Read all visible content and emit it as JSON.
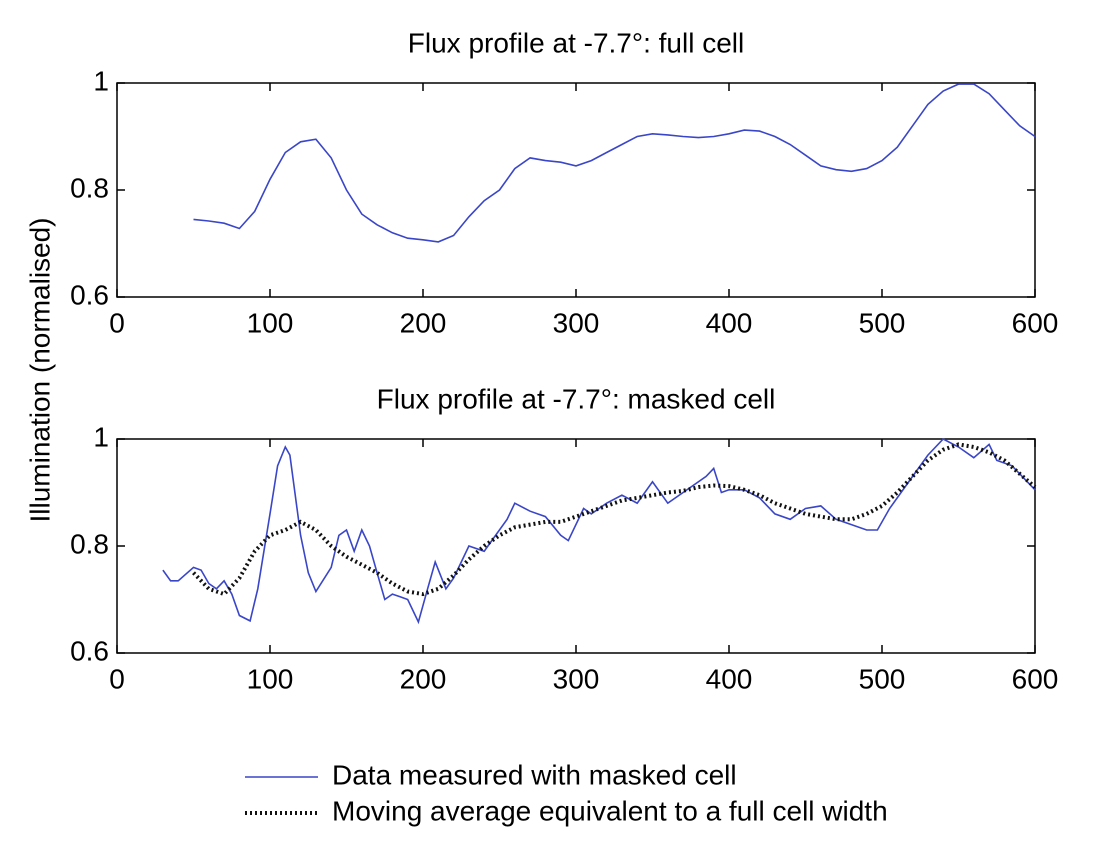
{
  "chart_data": [
    {
      "type": "line",
      "title": "Flux profile at -7.7°: full cell",
      "ylabel": "Illumination (normalised)",
      "color": "#3a46c8",
      "x": [
        50,
        60,
        70,
        80,
        90,
        100,
        110,
        120,
        130,
        140,
        150,
        160,
        170,
        180,
        190,
        200,
        210,
        220,
        230,
        240,
        250,
        260,
        270,
        280,
        290,
        300,
        310,
        320,
        330,
        340,
        350,
        360,
        370,
        380,
        390,
        400,
        410,
        420,
        430,
        440,
        450,
        460,
        470,
        480,
        490,
        500,
        510,
        520,
        530,
        540,
        550,
        560,
        570,
        580,
        590,
        600
      ],
      "values": [
        0.745,
        0.742,
        0.738,
        0.728,
        0.76,
        0.82,
        0.87,
        0.89,
        0.895,
        0.86,
        0.8,
        0.755,
        0.735,
        0.72,
        0.71,
        0.707,
        0.703,
        0.715,
        0.75,
        0.78,
        0.8,
        0.84,
        0.86,
        0.855,
        0.852,
        0.845,
        0.855,
        0.87,
        0.885,
        0.9,
        0.905,
        0.903,
        0.9,
        0.898,
        0.9,
        0.905,
        0.912,
        0.91,
        0.9,
        0.885,
        0.865,
        0.845,
        0.838,
        0.835,
        0.84,
        0.855,
        0.88,
        0.92,
        0.96,
        0.985,
        0.998,
        0.998,
        0.98,
        0.95,
        0.92,
        0.9
      ],
      "xlim": [
        0,
        600
      ],
      "xticks": [
        0,
        100,
        200,
        300,
        400,
        500,
        600
      ],
      "ylim": [
        0.6,
        1
      ],
      "yticks": [
        0.6,
        0.8,
        1
      ]
    },
    {
      "type": "line",
      "title": "Flux profile at -7.7°: masked cell",
      "legend": "bottom",
      "series": [
        {
          "name": "Data measured with masked cell",
          "color": "#3a46c8",
          "style": "solid",
          "x": [
            30,
            35,
            40,
            50,
            55,
            60,
            65,
            70,
            75,
            80,
            87,
            92,
            100,
            105,
            110,
            113,
            120,
            125,
            130,
            140,
            145,
            150,
            155,
            160,
            165,
            170,
            175,
            180,
            185,
            190,
            197,
            203,
            208,
            215,
            220,
            230,
            240,
            245,
            255,
            260,
            270,
            280,
            290,
            295,
            305,
            310,
            320,
            330,
            340,
            350,
            360,
            370,
            385,
            390,
            395,
            400,
            410,
            420,
            430,
            440,
            450,
            460,
            470,
            480,
            490,
            497,
            505,
            520,
            530,
            540,
            550,
            560,
            570,
            575,
            585,
            595,
            600
          ],
          "values": [
            0.755,
            0.735,
            0.735,
            0.76,
            0.755,
            0.73,
            0.72,
            0.735,
            0.71,
            0.67,
            0.66,
            0.72,
            0.86,
            0.95,
            0.985,
            0.97,
            0.82,
            0.75,
            0.715,
            0.76,
            0.82,
            0.83,
            0.79,
            0.83,
            0.8,
            0.75,
            0.7,
            0.71,
            0.705,
            0.7,
            0.658,
            0.72,
            0.77,
            0.72,
            0.74,
            0.8,
            0.79,
            0.81,
            0.85,
            0.88,
            0.865,
            0.855,
            0.82,
            0.81,
            0.87,
            0.86,
            0.88,
            0.895,
            0.88,
            0.92,
            0.88,
            0.9,
            0.93,
            0.945,
            0.9,
            0.905,
            0.905,
            0.89,
            0.86,
            0.85,
            0.87,
            0.875,
            0.85,
            0.84,
            0.83,
            0.83,
            0.87,
            0.93,
            0.97,
            1.0,
            0.985,
            0.965,
            0.99,
            0.96,
            0.95,
            0.92,
            0.905
          ]
        },
        {
          "name": "Moving average equivalent to a full cell width",
          "color": "#111111",
          "style": "dotted",
          "x": [
            50,
            60,
            70,
            80,
            90,
            100,
            110,
            120,
            130,
            140,
            150,
            160,
            170,
            180,
            190,
            200,
            210,
            220,
            230,
            240,
            250,
            260,
            270,
            280,
            290,
            300,
            310,
            320,
            330,
            340,
            350,
            360,
            370,
            380,
            390,
            400,
            410,
            420,
            430,
            440,
            450,
            460,
            470,
            480,
            490,
            500,
            510,
            520,
            530,
            540,
            550,
            560,
            570,
            580,
            590,
            600
          ],
          "values": [
            0.75,
            0.72,
            0.71,
            0.74,
            0.79,
            0.82,
            0.83,
            0.845,
            0.83,
            0.8,
            0.78,
            0.765,
            0.75,
            0.73,
            0.715,
            0.71,
            0.72,
            0.745,
            0.775,
            0.8,
            0.82,
            0.835,
            0.84,
            0.845,
            0.845,
            0.855,
            0.865,
            0.875,
            0.885,
            0.89,
            0.895,
            0.9,
            0.903,
            0.91,
            0.913,
            0.912,
            0.905,
            0.895,
            0.88,
            0.87,
            0.86,
            0.855,
            0.85,
            0.85,
            0.86,
            0.875,
            0.9,
            0.93,
            0.96,
            0.98,
            0.99,
            0.985,
            0.975,
            0.96,
            0.935,
            0.91
          ]
        }
      ],
      "xlim": [
        0,
        600
      ],
      "xticks": [
        0,
        100,
        200,
        300,
        400,
        500,
        600
      ],
      "ylim": [
        0.6,
        1
      ],
      "yticks": [
        0.6,
        0.8,
        1
      ]
    }
  ]
}
